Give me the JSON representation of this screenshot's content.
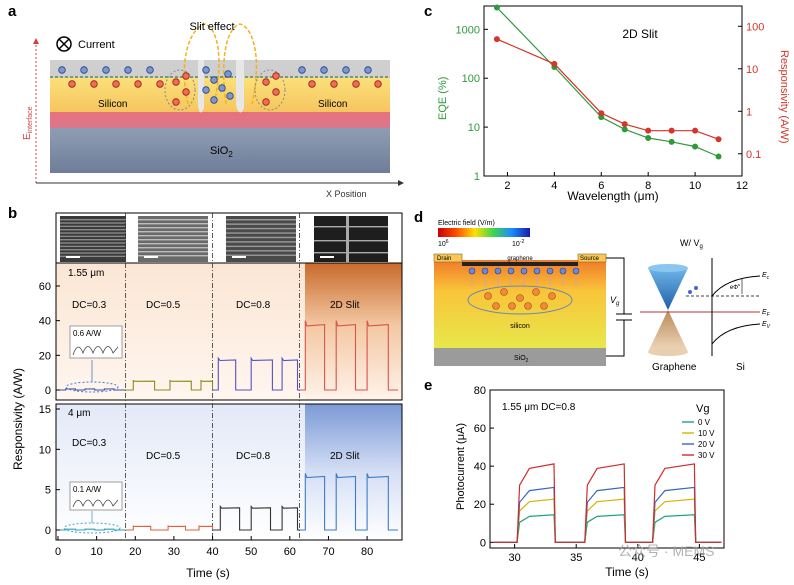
{
  "panels": {
    "a": {
      "label": "a",
      "current_label": "Current",
      "slit_label": "Slit effect",
      "silicon_left": "Silicon",
      "silicon_right": "Silicon",
      "substrate": "SiO",
      "substrate_sub": "2",
      "y_axis_label": "E",
      "y_axis_sub": "interface",
      "x_axis_label": "X Position"
    },
    "b": {
      "label": "b",
      "y_label": "Responsivity (A/W)",
      "x_label": "Time (s)",
      "top_wavelength": "1.55 μm",
      "bottom_wavelength": "4 μm",
      "top_segments": [
        "DC=0.3",
        "DC=0.5",
        "DC=0.8",
        "2D Slit"
      ],
      "bottom_segments": [
        "DC=0.3",
        "DC=0.5",
        "DC=0.8",
        "2D Slit"
      ],
      "top_inset": "0.6 A/W",
      "bottom_inset": "0.1 A/W",
      "top_yticks": [
        "0",
        "20",
        "40",
        "60"
      ],
      "bottom_yticks": [
        "0",
        "5",
        "10",
        "15"
      ],
      "xticks": [
        "0",
        "10",
        "20",
        "30",
        "40",
        "50",
        "60",
        "70",
        "80"
      ]
    },
    "c": {
      "label": "c",
      "title": "2D Slit",
      "ylabel_left": "EQE (%)",
      "ylabel_right": "Responsivity (A/W)",
      "xlabel": "Wavelength (μm)",
      "xticks": [
        "2",
        "4",
        "6",
        "8",
        "10",
        "12"
      ],
      "yticks_left": [
        "1",
        "10",
        "100",
        "1000"
      ],
      "yticks_right": [
        "0.1",
        "1",
        "10",
        "100"
      ]
    },
    "d": {
      "label": "d",
      "field_title": "Electric field (V/m)",
      "field_max": "10",
      "field_max_exp": "6",
      "field_min": "10",
      "field_min_exp": "-2",
      "drain": "Drain",
      "source": "Source",
      "graphene_top": "graphene",
      "silicon": "silicon",
      "substrate": "SiO",
      "substrate_sub": "2",
      "vg": "V",
      "vg_sub": "g",
      "w_vg": "W/ V",
      "w_vg_sub": "g",
      "graphene_label": "Graphene",
      "si_label": "Si",
      "ec": "E",
      "ec_sub": "c",
      "ef": "E",
      "ef_sub": "F",
      "ev": "E",
      "ev_sub": "V",
      "phi": "eΦ",
      "phi_sub": "s"
    },
    "e": {
      "label": "e",
      "annotation": "1.55 μm DC=0.8",
      "legend_title": "Vg",
      "ylabel": "Photocurrent (μA)",
      "xlabel": "Time (s)",
      "xticks": [
        "30",
        "35",
        "40",
        "45"
      ],
      "yticks": [
        "0",
        "20",
        "40",
        "60",
        "80"
      ]
    },
    "watermark": "公众号 · MEMS"
  },
  "chart_data": [
    {
      "id": "c",
      "type": "line",
      "title": "2D Slit",
      "xlabel": "Wavelength (μm)",
      "ylabel": "EQE (%)",
      "ylabel_right": "Responsivity (A/W)",
      "xlim": [
        1,
        12
      ],
      "ylim": [
        1,
        3000
      ],
      "ylim_right": [
        0.03,
        300
      ],
      "yscale": "log",
      "series": [
        {
          "name": "EQE",
          "axis": "left",
          "color": "#2e9a3c",
          "x": [
            1.55,
            4,
            6,
            7,
            8,
            9,
            10,
            11
          ],
          "y": [
            2800,
            170,
            16,
            9,
            6,
            5,
            4,
            2.5
          ]
        },
        {
          "name": "Responsivity",
          "axis": "right",
          "color": "#d5352b",
          "x": [
            1.55,
            4,
            6,
            7,
            8,
            9,
            10,
            11
          ],
          "y": [
            50,
            13,
            0.9,
            0.5,
            0.35,
            0.35,
            0.35,
            0.22
          ]
        }
      ]
    },
    {
      "id": "b-top",
      "type": "line",
      "wavelength": "1.55 μm",
      "xlabel": "Time (s)",
      "ylabel": "Responsivity (A/W)",
      "xlim": [
        0,
        88
      ],
      "ylim": [
        -3,
        72
      ],
      "segments": [
        {
          "name": "DC=0.3",
          "color": "#3a4fb0",
          "t": [
            0,
            17.5
          ],
          "on_value": 0.6,
          "pulses": [
            [
              2,
              4.5
            ],
            [
              7,
              9.5
            ],
            [
              12,
              14.5
            ]
          ]
        },
        {
          "name": "DC=0.5",
          "color": "#8d8d1c",
          "t": [
            17.5,
            40
          ],
          "on_value": 5,
          "pulses": [
            [
              19.5,
              25
            ],
            [
              29,
              34.5
            ],
            [
              37,
              40
            ]
          ]
        },
        {
          "name": "DC=0.8",
          "color": "#5353c8",
          "t": [
            40,
            62.5
          ],
          "on_value": 17,
          "pulses": [
            [
              41.5,
              46
            ],
            [
              50,
              55.5
            ],
            [
              58,
              62
            ]
          ]
        },
        {
          "name": "2D Slit",
          "color": "#d9534f",
          "t": [
            62.5,
            88
          ],
          "on_value": 37,
          "pulses": [
            [
              64,
              69
            ],
            [
              72,
              77
            ],
            [
              80,
              85.5
            ]
          ]
        }
      ]
    },
    {
      "id": "b-bottom",
      "type": "line",
      "wavelength": "4 μm",
      "xlabel": "Time (s)",
      "ylabel": "Responsivity (A/W)",
      "xlim": [
        0,
        88
      ],
      "ylim": [
        -0.5,
        15.5
      ],
      "segments": [
        {
          "name": "DC=0.3",
          "color": "#2e9fb8",
          "t": [
            0,
            17.5
          ],
          "on_value": 0.1,
          "pulses": [
            [
              2,
              4.5
            ],
            [
              7,
              9.5
            ],
            [
              12,
              14.5
            ]
          ]
        },
        {
          "name": "DC=0.5",
          "color": "#e0623a",
          "t": [
            17.5,
            40
          ],
          "on_value": 0.45,
          "pulses": [
            [
              19.5,
              24
            ],
            [
              28.5,
              33
            ],
            [
              36.5,
              40
            ]
          ]
        },
        {
          "name": "DC=0.8",
          "color": "#333333",
          "t": [
            40,
            62.5
          ],
          "on_value": 2.7,
          "pulses": [
            [
              42,
              47
            ],
            [
              50,
              55
            ],
            [
              58,
              62
            ]
          ]
        },
        {
          "name": "2D Slit",
          "color": "#3c7cc4",
          "t": [
            62.5,
            88
          ],
          "on_value": 6.5,
          "pulses": [
            [
              64,
              69
            ],
            [
              72,
              77
            ],
            [
              80,
              85.5
            ]
          ]
        }
      ]
    },
    {
      "id": "e",
      "type": "line",
      "xlabel": "Time (s)",
      "ylabel": "Photocurrent (μA)",
      "xlim": [
        28,
        47
      ],
      "ylim": [
        -3,
        80
      ],
      "pulses": [
        [
          30.2,
          33.2
        ],
        [
          35.7,
          38.9
        ],
        [
          41.2,
          44.6
        ]
      ],
      "series": [
        {
          "name": "0 V",
          "color": "#1fa37a",
          "on_value": 14
        },
        {
          "name": "10 V",
          "color": "#d9b200",
          "on_value": 22
        },
        {
          "name": "20 V",
          "color": "#3a67b8",
          "on_value": 28
        },
        {
          "name": "30 V",
          "color": "#cc2d2d",
          "on_value": 40
        }
      ]
    }
  ]
}
